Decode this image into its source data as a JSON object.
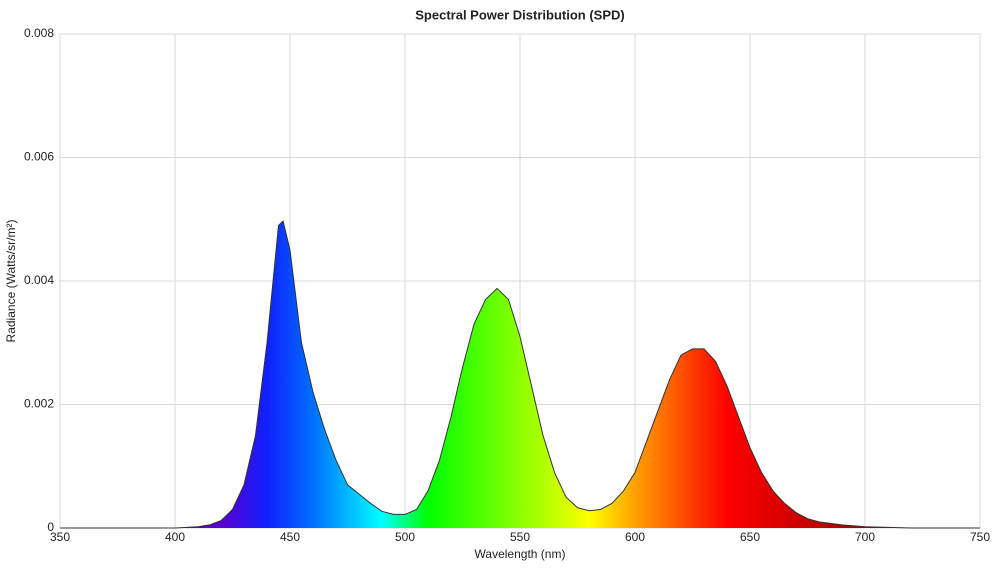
{
  "chart_data": {
    "type": "area",
    "title": "Spectral Power Distribution (SPD)",
    "x_label": "Wavelength (nm)",
    "y_label": "Radiance (Watts/sr/m²)",
    "x": [
      350,
      360,
      370,
      380,
      390,
      400,
      405,
      410,
      415,
      420,
      425,
      430,
      435,
      440,
      445,
      447,
      450,
      455,
      460,
      465,
      470,
      475,
      480,
      485,
      490,
      495,
      500,
      505,
      510,
      515,
      520,
      525,
      530,
      535,
      540,
      545,
      550,
      555,
      560,
      565,
      570,
      575,
      580,
      585,
      590,
      595,
      600,
      605,
      610,
      615,
      620,
      625,
      630,
      635,
      640,
      645,
      650,
      655,
      660,
      665,
      670,
      675,
      680,
      690,
      700,
      710,
      720,
      730,
      740,
      750
    ],
    "series": [
      {
        "name": "SPD",
        "color": "#333333",
        "values": [
          0,
          0,
          0,
          0,
          0,
          0,
          1e-05,
          2e-05,
          5e-05,
          0.00012,
          0.0003,
          0.0007,
          0.0015,
          0.003,
          0.0049,
          0.00497,
          0.0045,
          0.003,
          0.0022,
          0.0016,
          0.0011,
          0.0007,
          0.00055,
          0.0004,
          0.00027,
          0.00022,
          0.00022,
          0.0003,
          0.0006,
          0.0011,
          0.0018,
          0.0026,
          0.0033,
          0.0037,
          0.00388,
          0.0037,
          0.0031,
          0.0023,
          0.0015,
          0.0009,
          0.0005,
          0.00033,
          0.00028,
          0.0003,
          0.0004,
          0.0006,
          0.0009,
          0.0014,
          0.0019,
          0.0024,
          0.0028,
          0.0029,
          0.0029,
          0.0027,
          0.0023,
          0.0018,
          0.0013,
          0.0009,
          0.0006,
          0.0004,
          0.00025,
          0.00015,
          0.0001,
          5e-05,
          2e-05,
          1e-05,
          0,
          0,
          0,
          0
        ]
      }
    ],
    "xlim": [
      350,
      750
    ],
    "xticks": [
      350,
      400,
      450,
      500,
      550,
      600,
      650,
      700,
      750
    ],
    "ylim": [
      0,
      0.008
    ],
    "yticks": [
      0,
      0.002,
      0.004,
      0.006,
      0.008
    ],
    "grid": true
  }
}
